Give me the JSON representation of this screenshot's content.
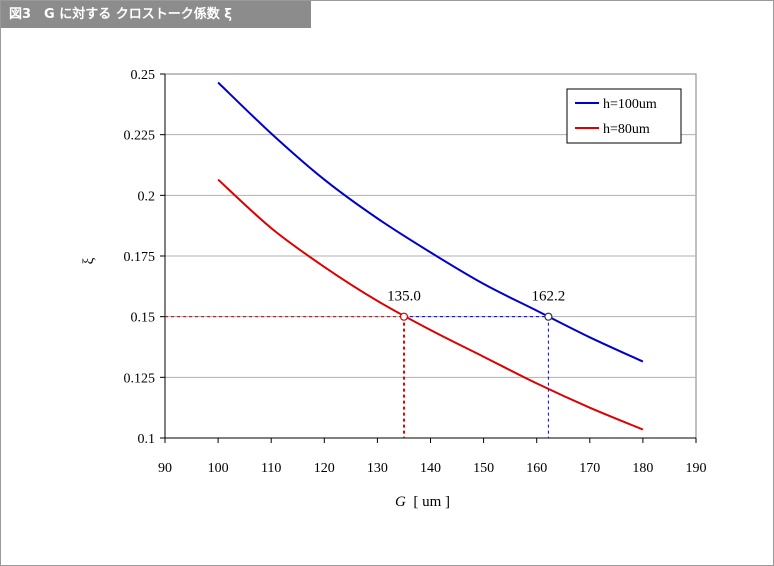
{
  "figure_title": "図3　G に対する クロストーク係数 ξ",
  "chart_data": {
    "type": "line",
    "xlabel_italic": "G",
    "xlabel_unit": "[ um ]",
    "ylabel": "ξ",
    "xlim": [
      90,
      190
    ],
    "ylim": [
      0.1,
      0.25
    ],
    "x_ticks": [
      "90",
      "100",
      "110",
      "120",
      "130",
      "140",
      "150",
      "160",
      "170",
      "180",
      "190"
    ],
    "y_ticks": [
      "0.1",
      "0.125",
      "0.15",
      "0.175",
      "0.2",
      "0.225",
      "0.25"
    ],
    "grid": "horizontal",
    "legend_position": "top-right",
    "x": [
      100,
      110,
      120,
      130,
      140,
      150,
      160,
      170,
      180
    ],
    "series": [
      {
        "name": "h=100um",
        "color": "#0000cc",
        "values": [
          0.2465,
          0.2255,
          0.2065,
          0.1905,
          0.1765,
          0.1635,
          0.1525,
          0.1415,
          0.1315
        ]
      },
      {
        "name": "h=80um",
        "color": "#dd0000",
        "values": [
          0.2065,
          0.1865,
          0.1705,
          0.1565,
          0.1445,
          0.1335,
          0.1225,
          0.1125,
          0.1035
        ]
      }
    ],
    "annotations": [
      {
        "label": "135.0",
        "x": 135.0,
        "y": 0.15,
        "color": "#dd0000"
      },
      {
        "label": "162.2",
        "x": 162.2,
        "y": 0.15,
        "color": "#0000cc"
      }
    ]
  }
}
